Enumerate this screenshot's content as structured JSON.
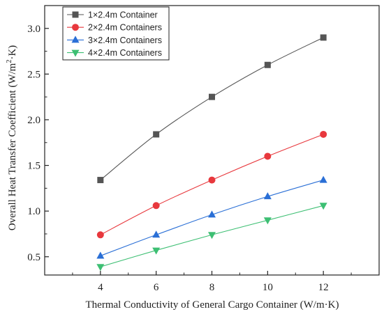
{
  "chart_data": {
    "type": "line",
    "title": "",
    "xlabel": "Thermal Conductivity of General Cargo Container (W/m·K)",
    "ylabel_parts": {
      "before": "Overall Heat Transfer Coefficient (W/m",
      "sup": "2",
      "after": "·K)"
    },
    "x": [
      4,
      6,
      8,
      10,
      12
    ],
    "xlim": [
      2,
      14
    ],
    "ylim": [
      0.3,
      3.25
    ],
    "x_ticks": [
      "4",
      "6",
      "8",
      "10",
      "12"
    ],
    "y_ticks": [
      "0.5",
      "1.0",
      "1.5",
      "2.0",
      "2.5",
      "3.0"
    ],
    "grid": false,
    "legend_position": "top-left",
    "series": [
      {
        "name": "1×2.4m Container",
        "marker": "square",
        "color": "#555555",
        "values": [
          1.34,
          1.84,
          2.25,
          2.6,
          2.9
        ]
      },
      {
        "name": "2×2.4m Containers",
        "marker": "circle",
        "color": "#e8383d",
        "values": [
          0.74,
          1.06,
          1.34,
          1.6,
          1.84
        ]
      },
      {
        "name": "3×2.4m Containers",
        "marker": "triangle-up",
        "color": "#2a6fd6",
        "values": [
          0.51,
          0.74,
          0.96,
          1.16,
          1.34
        ]
      },
      {
        "name": "4×2.4m Containers",
        "marker": "triangle-down",
        "color": "#3dbf73",
        "values": [
          0.39,
          0.57,
          0.74,
          0.9,
          1.06
        ]
      }
    ]
  }
}
